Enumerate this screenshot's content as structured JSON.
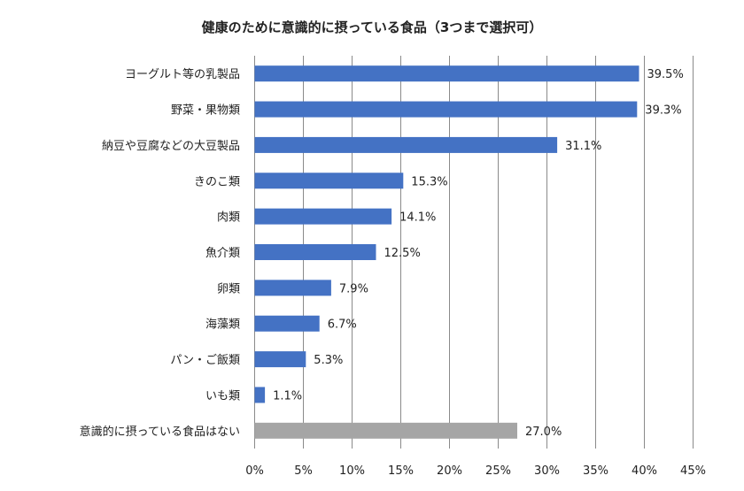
{
  "chart_data": {
    "type": "bar",
    "orientation": "horizontal",
    "title": "健康のために意識的に摂っている食品（3つまで選択可）",
    "categories": [
      "ヨーグルト等の乳製品",
      "野菜・果物類",
      "納豆や豆腐などの大豆製品",
      "きのこ類",
      "肉類",
      "魚介類",
      "卵類",
      "海藻類",
      "パン・ご飯類",
      "いも類",
      "意識的に摂っている食品はない"
    ],
    "values": [
      39.5,
      39.3,
      31.1,
      15.3,
      14.1,
      12.5,
      7.9,
      6.7,
      5.3,
      1.1,
      27.0
    ],
    "value_labels": [
      "39.5%",
      "39.3%",
      "31.1%",
      "15.3%",
      "14.1%",
      "12.5%",
      "7.9%",
      "6.7%",
      "5.3%",
      "1.1%",
      "27.0%"
    ],
    "bar_colors": [
      "#4472c4",
      "#4472c4",
      "#4472c4",
      "#4472c4",
      "#4472c4",
      "#4472c4",
      "#4472c4",
      "#4472c4",
      "#4472c4",
      "#4472c4",
      "#a5a5a5"
    ],
    "xlim": [
      0,
      45
    ],
    "x_ticks": [
      0,
      5,
      10,
      15,
      20,
      25,
      30,
      35,
      40,
      45
    ],
    "x_tick_labels": [
      "0%",
      "5%",
      "10%",
      "15%",
      "20%",
      "25%",
      "30%",
      "35%",
      "40%",
      "45%"
    ],
    "xlabel": "",
    "ylabel": "",
    "grid": "vertical",
    "legend": "none"
  }
}
